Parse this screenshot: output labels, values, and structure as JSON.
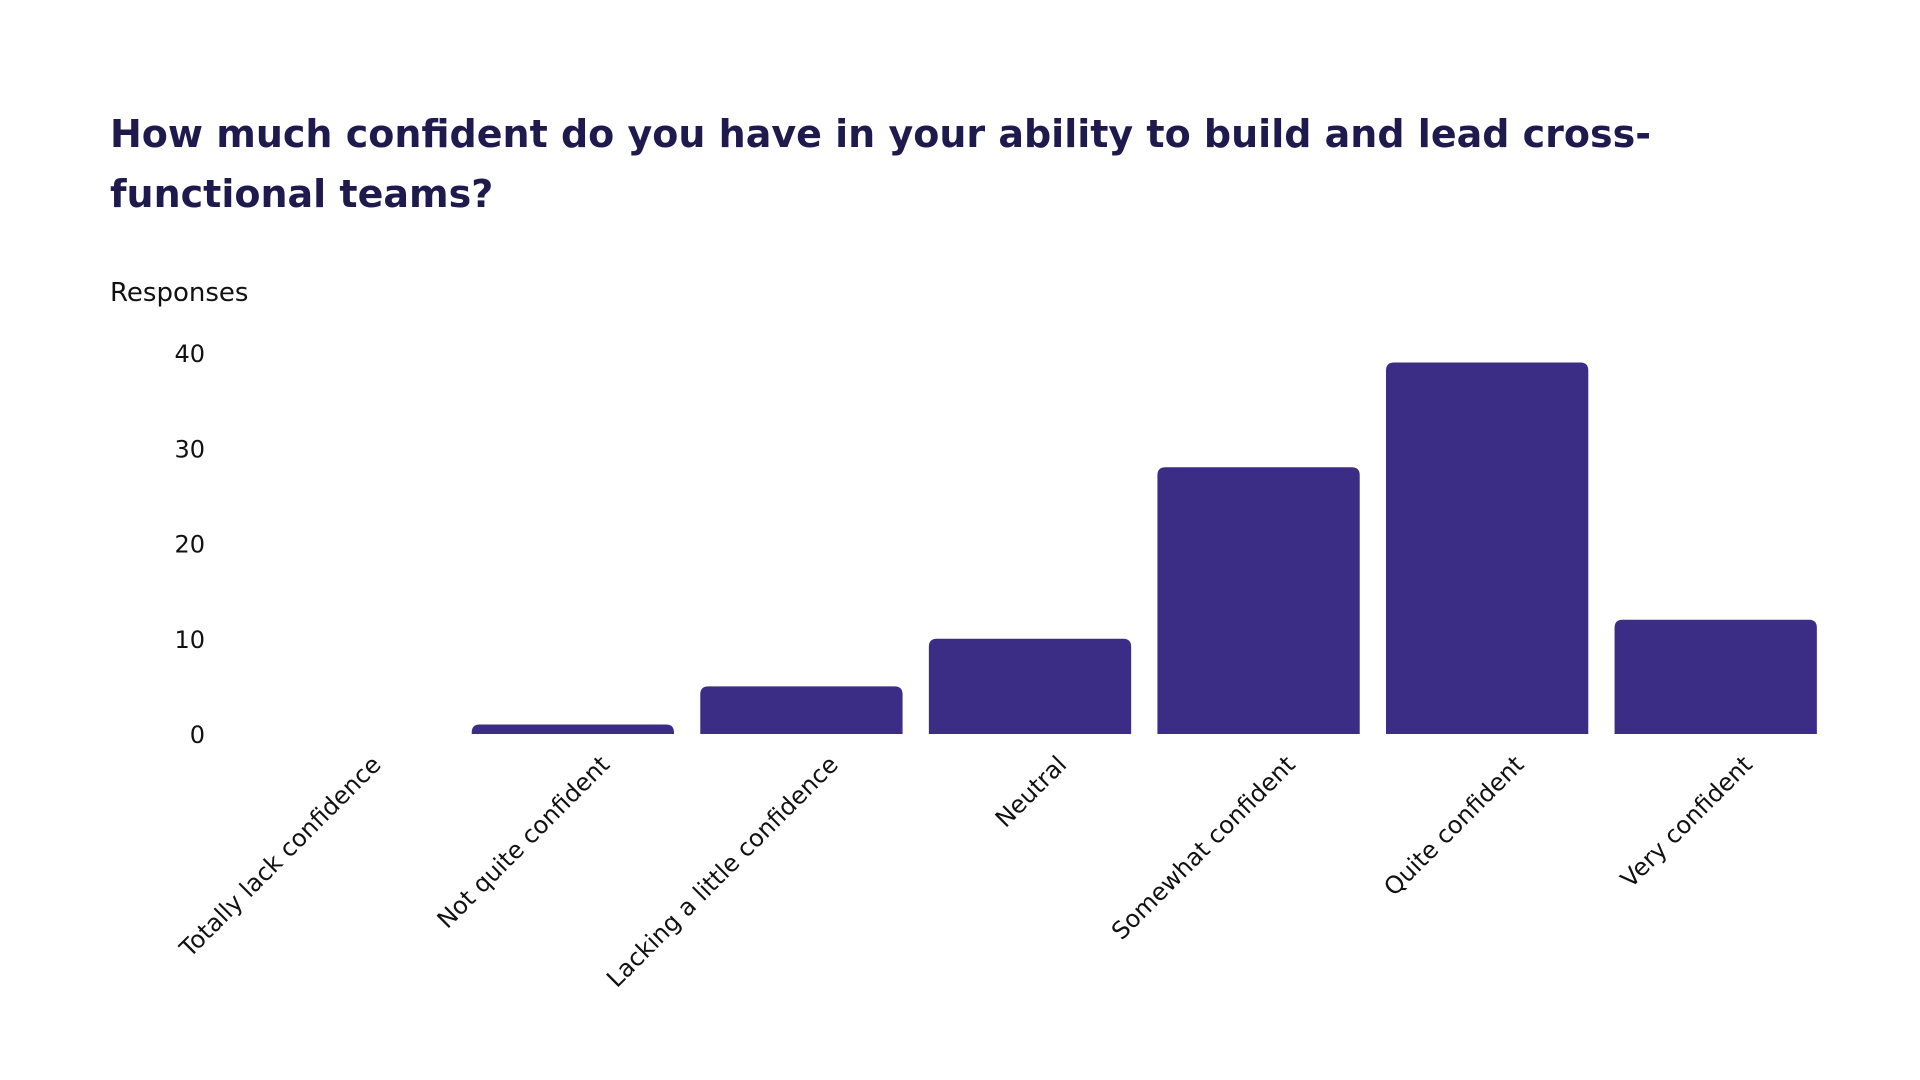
{
  "chart_data": {
    "type": "bar",
    "title": "How much confident do you have in your ability to build and lead cross-functional teams?",
    "ylabel": "Responses",
    "xlabel": "",
    "categories": [
      "Totally lack confidence",
      "Not quite confident",
      "Lacking a little confidence",
      "Neutral",
      "Somewhat confident",
      "Quite confident",
      "Very confident"
    ],
    "values": [
      0,
      1,
      5,
      10,
      28,
      39,
      12
    ],
    "ylim": [
      0,
      40
    ],
    "yticks": [
      0,
      10,
      20,
      30,
      40
    ],
    "grid": false,
    "legend": "none",
    "bar_color": "#3b2d86",
    "title_color": "#1f1a4d"
  }
}
